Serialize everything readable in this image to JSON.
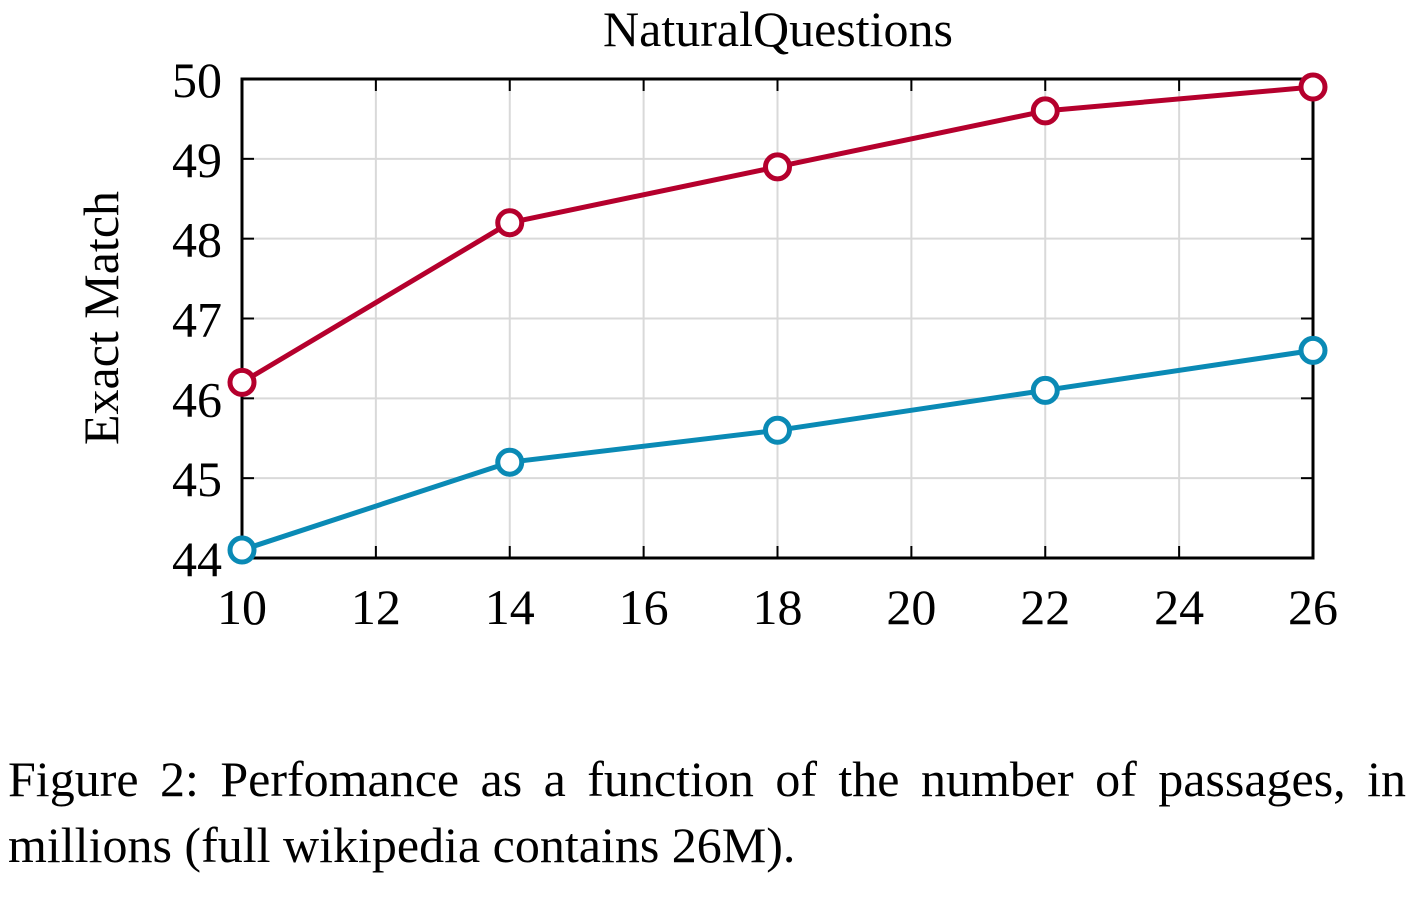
{
  "chart_data": {
    "type": "line",
    "title": "NaturalQuestions",
    "xlabel": "",
    "ylabel": "Exact Match",
    "x": [
      10,
      14,
      18,
      22,
      26
    ],
    "xlim": [
      10,
      26
    ],
    "ylim": [
      44,
      50
    ],
    "xticks": [
      10,
      12,
      14,
      16,
      18,
      20,
      22,
      24,
      26
    ],
    "yticks": [
      44,
      45,
      46,
      47,
      48,
      49,
      50
    ],
    "grid": true,
    "series": [
      {
        "values": [
          46.2,
          48.2,
          48.9,
          49.6,
          49.9
        ],
        "color": "#b5002d",
        "marker": "open-circle"
      },
      {
        "values": [
          44.1,
          45.2,
          45.6,
          46.1,
          46.6
        ],
        "color": "#0a8ab5",
        "marker": "open-circle"
      }
    ]
  },
  "caption": "Figure 2: Perfomance as a function of the number of passages, in millions (full wikipedia contains 26M)."
}
